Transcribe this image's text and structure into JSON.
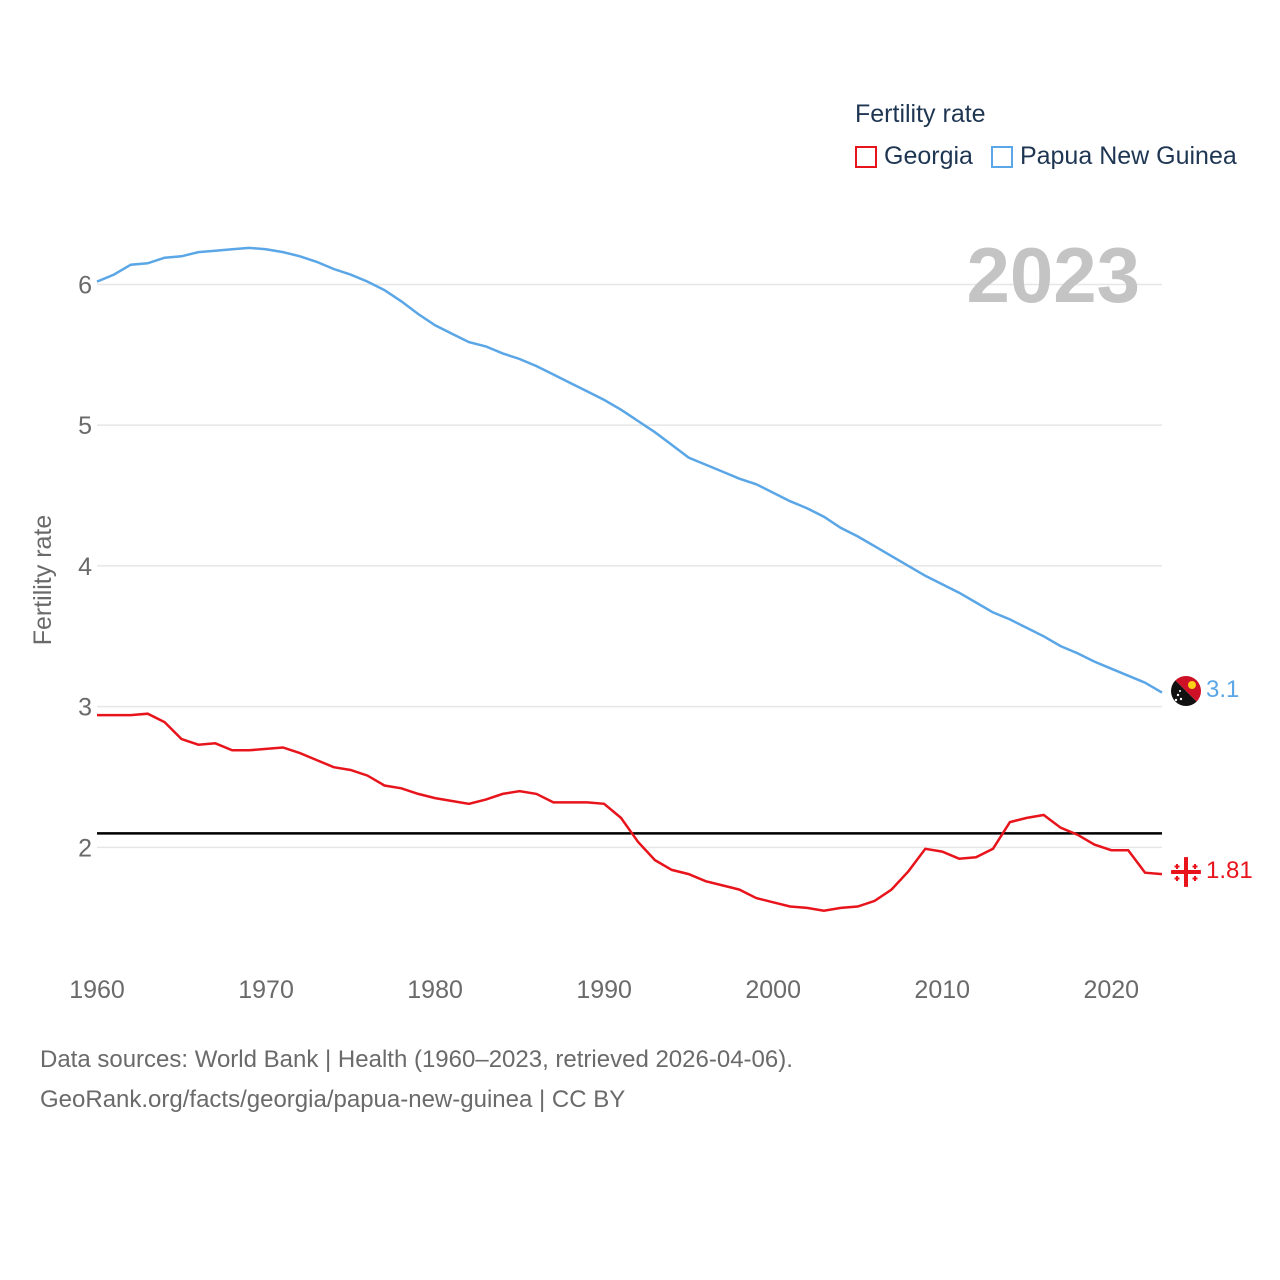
{
  "legend": {
    "title": "Fertility rate",
    "items": [
      {
        "label": "Georgia",
        "color": "#e8141c"
      },
      {
        "label": "Papua New Guinea",
        "color": "#5aa6e6"
      }
    ]
  },
  "year_badge": "2023",
  "end_labels": {
    "georgia": "1.81",
    "png": "3.1"
  },
  "footer": {
    "line1": "Data sources: World Bank | Health (1960–2023, retrieved 2026-04-06).",
    "line2": "GeoRank.org/facts/georgia/papua-new-guinea | CC BY"
  },
  "chart_data": {
    "type": "line",
    "title": "Fertility rate",
    "xlabel": "",
    "ylabel": "Fertility rate",
    "xlim": [
      1960,
      2023
    ],
    "ylim": [
      1.2,
      6.6
    ],
    "x_ticks": [
      1960,
      1970,
      1980,
      1990,
      2000,
      2010,
      2020
    ],
    "y_ticks": [
      2,
      3,
      4,
      5,
      6
    ],
    "reference_line": {
      "y": 2.1,
      "color": "#000000"
    },
    "x": [
      1960,
      1961,
      1962,
      1963,
      1964,
      1965,
      1966,
      1967,
      1968,
      1969,
      1970,
      1971,
      1972,
      1973,
      1974,
      1975,
      1976,
      1977,
      1978,
      1979,
      1980,
      1981,
      1982,
      1983,
      1984,
      1985,
      1986,
      1987,
      1988,
      1989,
      1990,
      1991,
      1992,
      1993,
      1994,
      1995,
      1996,
      1997,
      1998,
      1999,
      2000,
      2001,
      2002,
      2003,
      2004,
      2005,
      2006,
      2007,
      2008,
      2009,
      2010,
      2011,
      2012,
      2013,
      2014,
      2015,
      2016,
      2017,
      2018,
      2019,
      2020,
      2021,
      2022,
      2023
    ],
    "series": [
      {
        "name": "Georgia",
        "color": "#e8141c",
        "values": [
          2.94,
          2.94,
          2.94,
          2.95,
          2.89,
          2.77,
          2.73,
          2.74,
          2.69,
          2.69,
          2.7,
          2.71,
          2.67,
          2.62,
          2.57,
          2.55,
          2.51,
          2.44,
          2.42,
          2.38,
          2.35,
          2.33,
          2.31,
          2.34,
          2.38,
          2.4,
          2.38,
          2.32,
          2.32,
          2.32,
          2.31,
          2.21,
          2.04,
          1.91,
          1.84,
          1.81,
          1.76,
          1.73,
          1.7,
          1.64,
          1.61,
          1.58,
          1.57,
          1.55,
          1.57,
          1.58,
          1.62,
          1.7,
          1.83,
          1.99,
          1.97,
          1.92,
          1.93,
          1.99,
          2.18,
          2.21,
          2.23,
          2.14,
          2.09,
          2.02,
          1.98,
          1.98,
          1.82,
          1.81
        ]
      },
      {
        "name": "Papua New Guinea",
        "color": "#5aa6e6",
        "values": [
          6.02,
          6.07,
          6.14,
          6.15,
          6.19,
          6.2,
          6.23,
          6.24,
          6.25,
          6.26,
          6.25,
          6.23,
          6.2,
          6.16,
          6.11,
          6.07,
          6.02,
          5.96,
          5.88,
          5.79,
          5.71,
          5.65,
          5.59,
          5.56,
          5.51,
          5.47,
          5.42,
          5.36,
          5.3,
          5.24,
          5.18,
          5.11,
          5.03,
          4.95,
          4.86,
          4.77,
          4.72,
          4.67,
          4.62,
          4.58,
          4.52,
          4.46,
          4.41,
          4.35,
          4.27,
          4.21,
          4.14,
          4.07,
          4.0,
          3.93,
          3.87,
          3.81,
          3.74,
          3.67,
          3.62,
          3.56,
          3.5,
          3.43,
          3.38,
          3.32,
          3.27,
          3.22,
          3.17,
          3.1
        ]
      }
    ]
  }
}
